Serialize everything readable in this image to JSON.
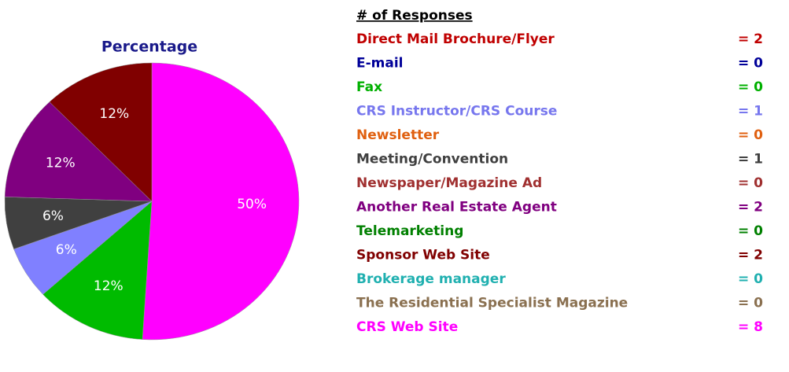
{
  "chart_data": {
    "type": "pie",
    "title": "Percentage",
    "values": [
      50,
      12,
      6,
      6,
      12,
      12
    ],
    "value_labels": [
      "50%",
      "12%",
      "6%",
      "6%",
      "12%",
      "12%"
    ],
    "colors": [
      "#ff00ff",
      "#00bb00",
      "#8080ff",
      "#404040",
      "#800080",
      "#800000"
    ]
  },
  "table": {
    "header": "# of Responses",
    "rows": [
      {
        "label": "Direct Mail Brochure/Flyer",
        "count": "= 2",
        "color": "#c00000"
      },
      {
        "label": "E-mail",
        "count": "= 0",
        "color": "#000099"
      },
      {
        "label": "Fax",
        "count": "= 0",
        "color": "#00b000"
      },
      {
        "label": "CRS Instructor/CRS Course",
        "count": "= 1",
        "color": "#7777ee"
      },
      {
        "label": "Newsletter",
        "count": "= 0",
        "color": "#e06010"
      },
      {
        "label": "Meeting/Convention",
        "count": "= 1",
        "color": "#404040"
      },
      {
        "label": "Newspaper/Magazine Ad",
        "count": "= 0",
        "color": "#a03030"
      },
      {
        "label": "Another Real Estate Agent",
        "count": "= 2",
        "color": "#800080"
      },
      {
        "label": "Telemarketing",
        "count": "= 0",
        "color": "#008000"
      },
      {
        "label": "Sponsor Web Site",
        "count": "= 2",
        "color": "#800000"
      },
      {
        "label": "Brokerage manager",
        "count": "= 0",
        "color": "#20b0b0"
      },
      {
        "label": "The Residential Specialist Magazine",
        "count": "= 0",
        "color": "#8a7050"
      },
      {
        "label": "CRS Web Site",
        "count": "= 8",
        "color": "#ff00ff"
      }
    ]
  }
}
